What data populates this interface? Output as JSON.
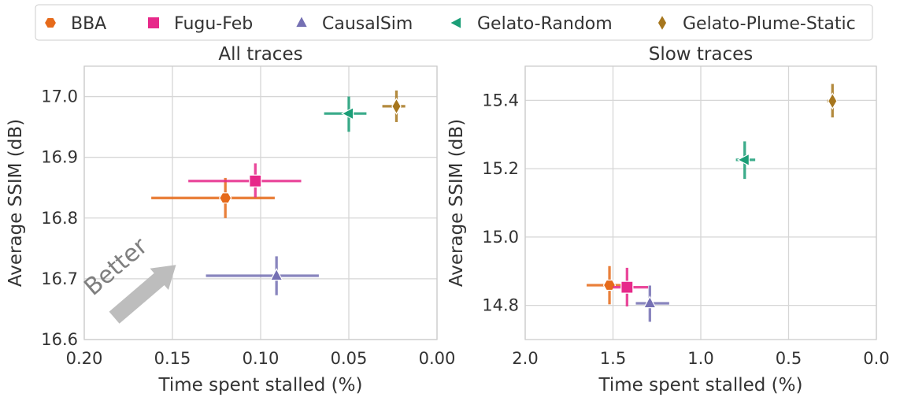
{
  "legend": {
    "placement": "top-center",
    "items": [
      {
        "label": "BBA",
        "color": "#e66a1a",
        "marker": "hexagon"
      },
      {
        "label": "Fugu-Feb",
        "color": "#e7298a",
        "marker": "square"
      },
      {
        "label": "CausalSim",
        "color": "#7570b3",
        "marker": "triangle-up"
      },
      {
        "label": "Gelato-Random",
        "color": "#1b9e77",
        "marker": "triangle-left"
      },
      {
        "label": "Gelato-Plume-Static",
        "color": "#a6761d",
        "marker": "diamond"
      }
    ]
  },
  "chart_data": [
    {
      "type": "scatter",
      "title": "All traces",
      "xlabel": "Time spent stalled (%)",
      "ylabel": "Average SSIM (dB)",
      "xlim": [
        0.2,
        0.0
      ],
      "x_inverted": true,
      "ylim": [
        16.6,
        16.75
      ],
      "ylim_top": 17.05,
      "xticks": [
        0.2,
        0.15,
        0.1,
        0.05,
        0.0
      ],
      "xtick_labels": [
        "0.20",
        "0.15",
        "0.10",
        "0.05",
        "0.00"
      ],
      "yticks": [
        16.6,
        16.7,
        16.8,
        16.9,
        17.0
      ],
      "ytick_labels": [
        "16.6",
        "16.7",
        "16.8",
        "16.9",
        "17.0"
      ],
      "grid": true,
      "annotation": {
        "text": "Better",
        "color": "#bdbdbd",
        "arrow_from": [
          0.183,
          16.636
        ],
        "arrow_to": [
          0.148,
          16.723
        ]
      },
      "series": [
        {
          "name": "BBA",
          "x": 0.12,
          "y": 16.833,
          "x_err": [
            0.162,
            0.092
          ],
          "y_err": [
            16.8,
            16.866
          ]
        },
        {
          "name": "Fugu-Feb",
          "x": 0.103,
          "y": 16.861,
          "x_err": [
            0.141,
            0.077
          ],
          "y_err": [
            16.834,
            16.89
          ]
        },
        {
          "name": "CausalSim",
          "x": 0.091,
          "y": 16.705,
          "x_err": [
            0.131,
            0.067
          ],
          "y_err": [
            16.673,
            16.737
          ]
        },
        {
          "name": "Gelato-Random",
          "x": 0.05,
          "y": 16.972,
          "x_err": [
            0.064,
            0.04
          ],
          "y_err": [
            16.942,
            17.0
          ]
        },
        {
          "name": "Gelato-Plume-Static",
          "x": 0.023,
          "y": 16.984,
          "x_err": [
            0.031,
            0.018
          ],
          "y_err": [
            16.958,
            17.01
          ]
        }
      ]
    },
    {
      "type": "scatter",
      "title": "Slow traces",
      "xlabel": "Time spent stalled (%)",
      "ylabel": "Average SSIM (dB)",
      "xlim": [
        2.0,
        0.0
      ],
      "x_inverted": true,
      "ylim": [
        14.7,
        15.5
      ],
      "xticks": [
        2.0,
        1.5,
        1.0,
        0.5,
        0.0
      ],
      "xtick_labels": [
        "2.0",
        "1.5",
        "1.0",
        "0.5",
        "0.0"
      ],
      "yticks": [
        14.8,
        15.0,
        15.2,
        15.4
      ],
      "ytick_labels": [
        "14.8",
        "15.0",
        "15.2",
        "15.4"
      ],
      "grid": true,
      "series": [
        {
          "name": "BBA",
          "x": 1.52,
          "y": 14.859,
          "x_err": [
            1.65,
            1.45
          ],
          "y_err": [
            14.803,
            14.915
          ]
        },
        {
          "name": "Fugu-Feb",
          "x": 1.42,
          "y": 14.853,
          "x_err": [
            1.5,
            1.3
          ],
          "y_err": [
            14.797,
            14.91
          ]
        },
        {
          "name": "CausalSim",
          "x": 1.29,
          "y": 14.806,
          "x_err": [
            1.37,
            1.18
          ],
          "y_err": [
            14.752,
            14.858
          ]
        },
        {
          "name": "Gelato-Random",
          "x": 0.75,
          "y": 15.226,
          "x_err": [
            0.8,
            0.69
          ],
          "y_err": [
            15.17,
            15.28
          ]
        },
        {
          "name": "Gelato-Plume-Static",
          "x": 0.25,
          "y": 15.398,
          "x_err": [
            0.28,
            0.23
          ],
          "y_err": [
            15.35,
            15.448
          ]
        }
      ]
    }
  ]
}
